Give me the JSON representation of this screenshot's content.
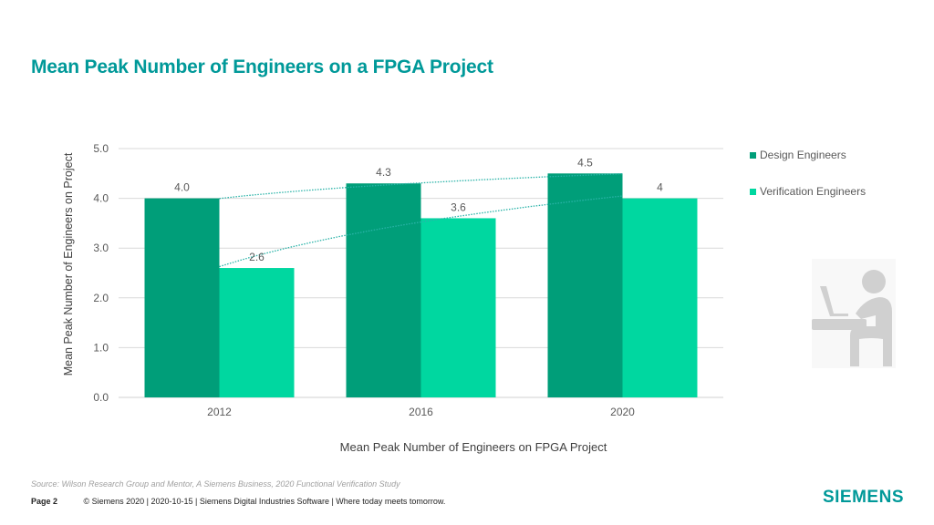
{
  "slide": {
    "title": "Mean Peak Number of Engineers on a FPGA Project",
    "source": "Source:  Wilson Research Group and Mentor,  A Siemens Business, 2020 Functional Verification Study",
    "page_label": "Page 2",
    "footer_text": "© Siemens 2020 | 2020-10-15 | Siemens Digital Industries Software | Where today meets tomorrow.",
    "logo": "SIEMENS",
    "illustration_icon": "person-at-laptop-icon"
  },
  "colors": {
    "title": "#009999",
    "design": "#009E79",
    "verification": "#00D7A0",
    "trendline": "#2AB3A8",
    "grid": "#D9D9D9"
  },
  "chart_data": {
    "type": "bar",
    "title": "",
    "xlabel": "Mean Peak Number of Engineers on FPGA Project",
    "ylabel": "Mean Peak Number of Engineers on Project",
    "categories": [
      "2012",
      "2016",
      "2020"
    ],
    "series": [
      {
        "name": "Design Engineers",
        "values": [
          4.0,
          4.3,
          4.5
        ],
        "labels": [
          "4.0",
          "4.3",
          "4.5"
        ],
        "color": "#009E79"
      },
      {
        "name": "Verification Engineers",
        "values": [
          2.6,
          3.6,
          4.0
        ],
        "labels": [
          "2.6",
          "3.6",
          "4"
        ],
        "color": "#00D7A0"
      }
    ],
    "ylim": [
      0,
      5
    ],
    "yticks": [
      0,
      1,
      2,
      3,
      4,
      5
    ],
    "ytick_labels": [
      "0.0",
      "1.0",
      "2.0",
      "3.0",
      "4.0",
      "5.0"
    ],
    "grid": true,
    "legend_position": "right",
    "trendlines": "dotted logarithmic trendline per series"
  }
}
